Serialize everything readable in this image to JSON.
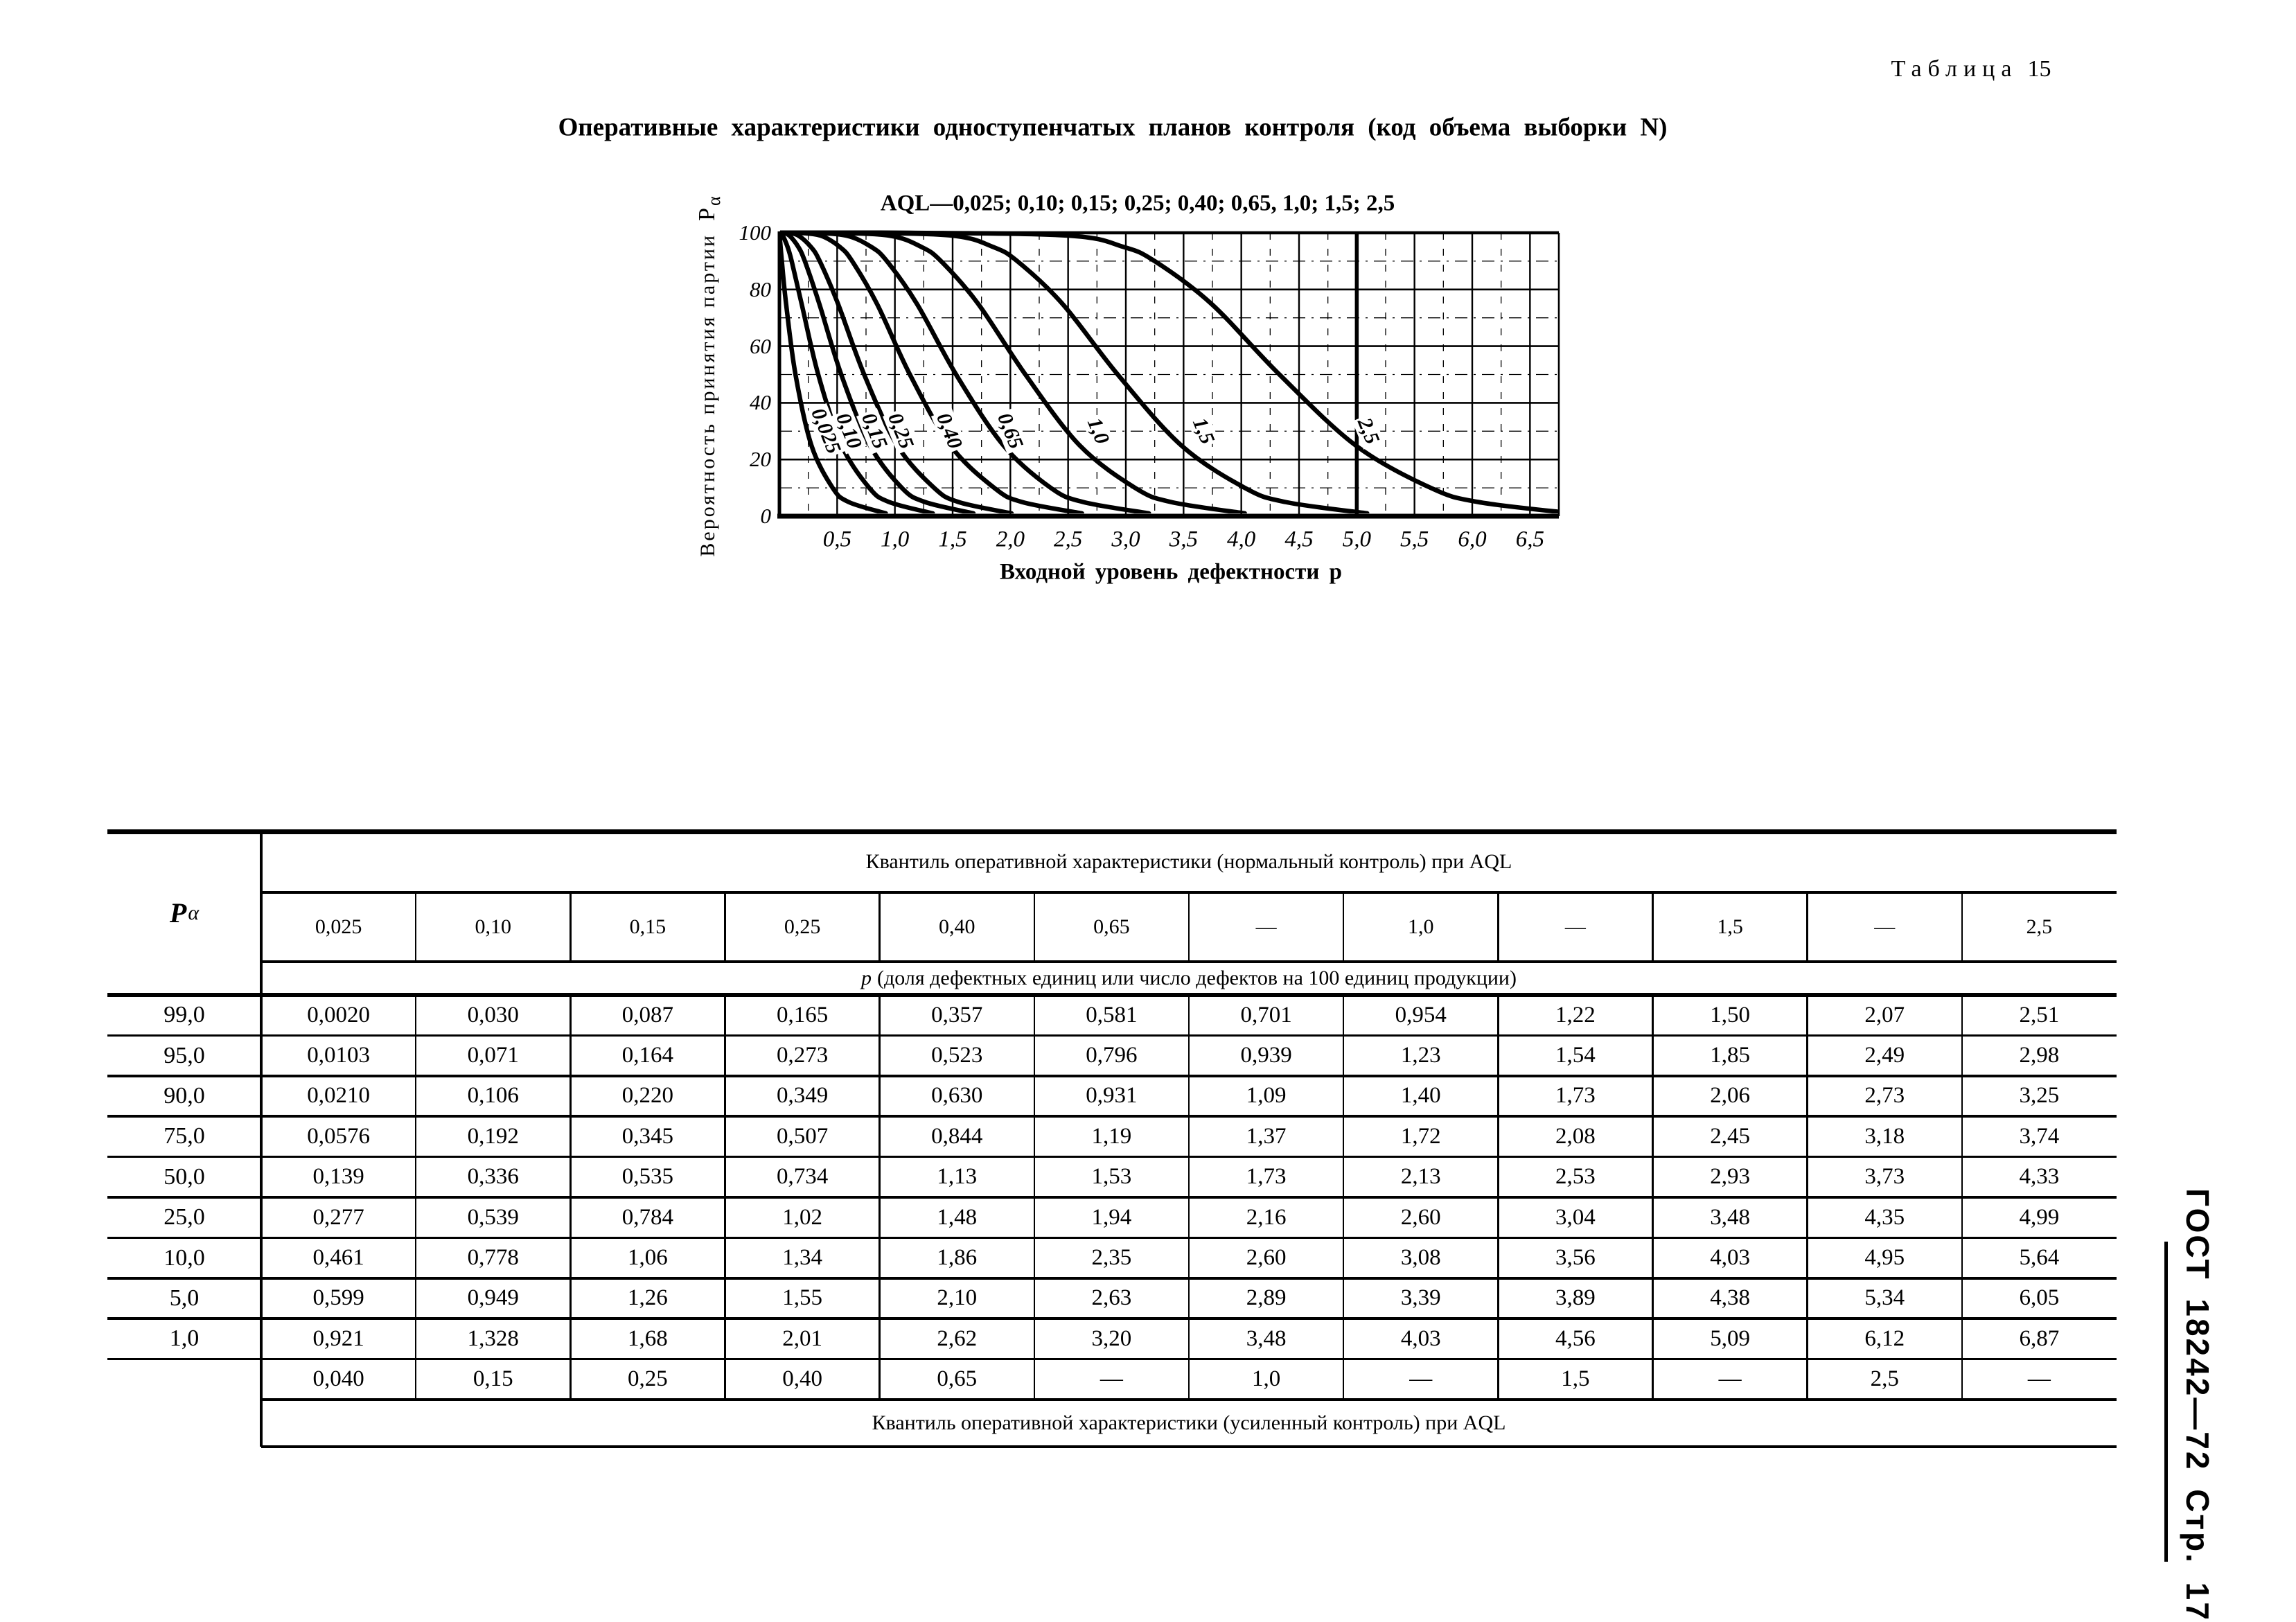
{
  "page": {
    "table_label": {
      "word": "Таблица",
      "num": "15"
    },
    "title": "Оперативные характеристики одноступенчатых планов контроля (код объема выборки N)",
    "side_label": "ГОСТ 18242—72  Стр. 17"
  },
  "chart_data": {
    "type": "line",
    "title": "AQL—0,025; 0,10; 0,15; 0,25; 0,40; 0,65, 1,0; 1,5; 2,5",
    "xlabel": "Входной уровень дефектности р",
    "ylabel": "Вероятность принятия партии Рα",
    "ylabel_parts": {
      "main": "Вероятность принятия партии",
      "sym": "Р",
      "sub": "α"
    },
    "xlim": [
      0,
      6.75
    ],
    "ylim": [
      0,
      100
    ],
    "grid": {
      "major_x_step": 0.5,
      "minor_x_step": 0.25,
      "major_y_step": 20,
      "minor_y_step": 10,
      "emphasized_x": 5.0
    },
    "x_ticks": [
      {
        "v": 0.5,
        "label": "0,5"
      },
      {
        "v": 1.0,
        "label": "1,0"
      },
      {
        "v": 1.5,
        "label": "1,5"
      },
      {
        "v": 2.0,
        "label": "2,0"
      },
      {
        "v": 2.5,
        "label": "2,5"
      },
      {
        "v": 3.0,
        "label": "3,0"
      },
      {
        "v": 3.5,
        "label": "3,5"
      },
      {
        "v": 4.0,
        "label": "4,0"
      },
      {
        "v": 4.5,
        "label": "4,5"
      },
      {
        "v": 5.0,
        "label": "5,0"
      },
      {
        "v": 5.5,
        "label": "5,5"
      },
      {
        "v": 6.0,
        "label": "6,0"
      },
      {
        "v": 6.5,
        "label": "6,5"
      }
    ],
    "y_ticks": [
      {
        "v": 100,
        "label": "100"
      },
      {
        "v": 80,
        "label": "80"
      },
      {
        "v": 60,
        "label": "60"
      },
      {
        "v": 40,
        "label": "40"
      },
      {
        "v": 20,
        "label": "20"
      },
      {
        "v": 0,
        "label": "0"
      }
    ],
    "pa_levels": [
      99,
      95,
      90,
      75,
      50,
      25,
      10,
      5,
      1
    ],
    "series": [
      {
        "name": "0,025",
        "p": [
          0.002,
          0.0103,
          0.021,
          0.0576,
          0.139,
          0.277,
          0.461,
          0.599,
          0.921
        ],
        "label_at": [
          0.4,
          30
        ]
      },
      {
        "name": "0,10",
        "p": [
          0.03,
          0.071,
          0.106,
          0.192,
          0.336,
          0.539,
          0.778,
          0.949,
          1.328
        ],
        "label_at": [
          0.6,
          30
        ]
      },
      {
        "name": "0,15",
        "p": [
          0.087,
          0.164,
          0.22,
          0.345,
          0.535,
          0.784,
          1.06,
          1.26,
          1.68
        ],
        "label_at": [
          0.82,
          30
        ]
      },
      {
        "name": "0,25",
        "p": [
          0.165,
          0.273,
          0.349,
          0.507,
          0.734,
          1.02,
          1.34,
          1.55,
          2.01
        ],
        "label_at": [
          1.05,
          30
        ]
      },
      {
        "name": "0,40",
        "p": [
          0.357,
          0.523,
          0.63,
          0.844,
          1.13,
          1.48,
          1.86,
          2.1,
          2.62
        ],
        "label_at": [
          1.47,
          30
        ]
      },
      {
        "name": "0,65",
        "p": [
          0.581,
          0.796,
          0.931,
          1.19,
          1.53,
          1.94,
          2.35,
          2.63,
          3.2
        ],
        "label_at": [
          2.0,
          30
        ]
      },
      {
        "name": "1,0",
        "p": [
          0.954,
          1.23,
          1.4,
          1.72,
          2.13,
          2.6,
          3.08,
          3.39,
          4.03
        ],
        "label_at": [
          2.76,
          30
        ]
      },
      {
        "name": "1,5",
        "p": [
          1.5,
          1.85,
          2.06,
          2.45,
          2.93,
          3.48,
          4.03,
          4.38,
          5.09
        ],
        "label_at": [
          3.67,
          30
        ]
      },
      {
        "name": "2,5",
        "p": [
          2.51,
          2.98,
          3.25,
          3.74,
          4.33,
          4.99,
          5.64,
          6.05,
          6.87
        ],
        "label_at": [
          5.1,
          30
        ]
      }
    ]
  },
  "table": {
    "header_top": "Квантиль оперативной  характеристики (нормальный контроль) при AQL",
    "col_pa": {
      "sym": "Р",
      "sub": "α"
    },
    "aql_columns": [
      "0,025",
      "0,10",
      "0,15",
      "0,25",
      "0,40",
      "0,65",
      "—",
      "1,0",
      "—",
      "1,5",
      "—",
      "2,5"
    ],
    "p_note_sym": "р",
    "p_note_rest": "(доля дефектных единиц или число дефектов на 100 единиц продукции)",
    "rows": [
      {
        "pa": "99,0",
        "values": [
          "0,0020",
          "0,030",
          "0,087",
          "0,165",
          "0,357",
          "0,581",
          "0,701",
          "0,954",
          "1,22",
          "1,50",
          "2,07",
          "2,51"
        ]
      },
      {
        "pa": "95,0",
        "values": [
          "0,0103",
          "0,071",
          "0,164",
          "0,273",
          "0,523",
          "0,796",
          "0,939",
          "1,23",
          "1,54",
          "1,85",
          "2,49",
          "2,98"
        ]
      },
      {
        "pa": "90,0",
        "values": [
          "0,0210",
          "0,106",
          "0,220",
          "0,349",
          "0,630",
          "0,931",
          "1,09",
          "1,40",
          "1,73",
          "2,06",
          "2,73",
          "3,25"
        ]
      },
      {
        "pa": "75,0",
        "values": [
          "0,0576",
          "0,192",
          "0,345",
          "0,507",
          "0,844",
          "1,19",
          "1,37",
          "1,72",
          "2,08",
          "2,45",
          "3,18",
          "3,74"
        ]
      },
      {
        "pa": "50,0",
        "values": [
          "0,139",
          "0,336",
          "0,535",
          "0,734",
          "1,13",
          "1,53",
          "1,73",
          "2,13",
          "2,53",
          "2,93",
          "3,73",
          "4,33"
        ]
      },
      {
        "pa": "25,0",
        "values": [
          "0,277",
          "0,539",
          "0,784",
          "1,02",
          "1,48",
          "1,94",
          "2,16",
          "2,60",
          "3,04",
          "3,48",
          "4,35",
          "4,99"
        ]
      },
      {
        "pa": "10,0",
        "values": [
          "0,461",
          "0,778",
          "1,06",
          "1,34",
          "1,86",
          "2,35",
          "2,60",
          "3,08",
          "3,56",
          "4,03",
          "4,95",
          "5,64"
        ]
      },
      {
        "pa": "5,0",
        "values": [
          "0,599",
          "0,949",
          "1,26",
          "1,55",
          "2,10",
          "2,63",
          "2,89",
          "3,39",
          "3,89",
          "4,38",
          "5,34",
          "6,05"
        ]
      },
      {
        "pa": "1,0",
        "values": [
          "0,921",
          "1,328",
          "1,68",
          "2,01",
          "2,62",
          "3,20",
          "3,48",
          "4,03",
          "4,56",
          "5,09",
          "6,12",
          "6,87"
        ]
      }
    ],
    "tightened_aql_row": [
      "0,040",
      "0,15",
      "0,25",
      "0,40",
      "0,65",
      "—",
      "1,0",
      "—",
      "1,5",
      "—",
      "2,5",
      "—"
    ],
    "footer": "Квантиль  оперативной  характеристики  (усиленный  контроль)  при  AQL"
  },
  "colors": {
    "ink": "#000000",
    "paper": "#ffffff"
  }
}
